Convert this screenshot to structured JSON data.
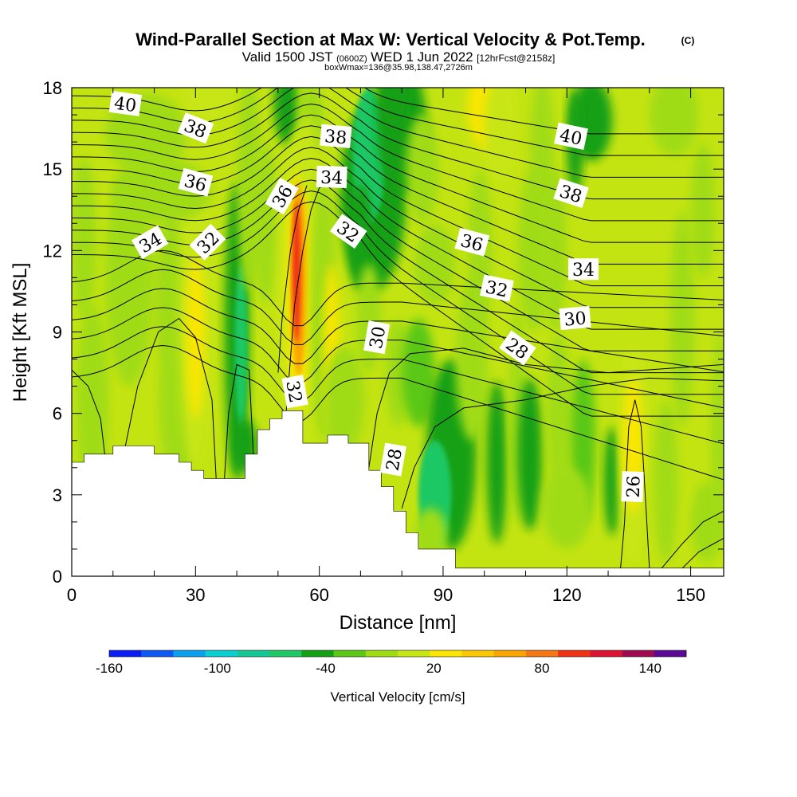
{
  "chart_data": {
    "type": "heatmap",
    "title": "Wind-Parallel Section at Max W: Vertical Velocity & Pot.Temp.",
    "title_mark": "(C)",
    "subtitle_valid": "Valid 1500 JST",
    "subtitle_utc": "(0600Z)",
    "subtitle_date": "WED 1 Jun 2022",
    "subtitle_fcst": "[12hrFcst@2158z]",
    "subtitle2": "boxWmax=136@35.98,138.47,2726m",
    "xlabel": "Distance [nm]",
    "ylabel": "Height [Kft MSL]",
    "xlim": [
      0,
      158
    ],
    "ylim": [
      0,
      18
    ],
    "x_ticks": [
      0,
      30,
      60,
      90,
      120,
      150
    ],
    "y_ticks": [
      0,
      3,
      6,
      9,
      12,
      15,
      18
    ],
    "colorbar": {
      "label": "Vertical Velocity [cm/s]",
      "min": -160,
      "max": 160,
      "step": 20,
      "tick_labels": [
        "-160",
        "-100",
        "-40",
        "20",
        "80",
        "140"
      ],
      "tick_values": [
        -160,
        -100,
        -40,
        20,
        80,
        140
      ],
      "colors": [
        "#0a1ef5",
        "#0f5af5",
        "#0aa0f0",
        "#0acfd0",
        "#14c896",
        "#1ec864",
        "#14a014",
        "#5ac814",
        "#a0dc14",
        "#c8e614",
        "#fae600",
        "#fac800",
        "#faa500",
        "#f57814",
        "#f03214",
        "#dc1432",
        "#a00a50",
        "#5a0a96"
      ]
    },
    "w_max_cells": [
      {
        "x": 55,
        "y": 11,
        "w": 136
      },
      {
        "x": 30,
        "y": 9,
        "w": 40
      },
      {
        "x": 135,
        "y": 5,
        "w": 45
      },
      {
        "x": 103,
        "y": 17.5,
        "w": 45
      },
      {
        "x": 42,
        "y": 8.5,
        "w": -50
      },
      {
        "x": 75,
        "y": 15,
        "w": -55
      },
      {
        "x": 95,
        "y": 4,
        "w": -45
      }
    ],
    "theta_contours_K": [
      26,
      28,
      30,
      32,
      34,
      36,
      38,
      40
    ],
    "theta_contour_labels": [
      {
        "text": "40",
        "x": 13,
        "y": 17.4
      },
      {
        "text": "38",
        "x": 30,
        "y": 16.5
      },
      {
        "text": "36",
        "x": 30,
        "y": 14.5
      },
      {
        "text": "34",
        "x": 19,
        "y": 12.3
      },
      {
        "text": "32",
        "x": 33,
        "y": 12.3
      },
      {
        "text": "36",
        "x": 51,
        "y": 14
      },
      {
        "text": "38",
        "x": 64,
        "y": 16.2
      },
      {
        "text": "34",
        "x": 63,
        "y": 14.7
      },
      {
        "text": "32",
        "x": 67,
        "y": 12.7
      },
      {
        "text": "36",
        "x": 97,
        "y": 12.3
      },
      {
        "text": "40",
        "x": 121,
        "y": 16.2
      },
      {
        "text": "38",
        "x": 121,
        "y": 14.1
      },
      {
        "text": "34",
        "x": 124,
        "y": 11.3
      },
      {
        "text": "32",
        "x": 103,
        "y": 10.6
      },
      {
        "text": "30",
        "x": 122,
        "y": 9.5
      },
      {
        "text": "30",
        "x": 74,
        "y": 8.8
      },
      {
        "text": "28",
        "x": 108,
        "y": 8.4
      },
      {
        "text": "32",
        "x": 54,
        "y": 6.8
      },
      {
        "text": "28",
        "x": 78,
        "y": 4.3
      },
      {
        "text": "26",
        "x": 136,
        "y": 3.3
      }
    ],
    "terrain_profile": {
      "x": [
        0,
        3,
        3,
        10,
        10,
        20,
        20,
        26,
        26,
        29,
        29,
        32,
        32,
        42,
        42,
        45,
        45,
        48,
        48,
        51,
        51,
        56,
        56,
        62,
        62,
        67,
        67,
        72,
        72,
        75,
        75,
        78,
        78,
        81,
        81,
        84,
        84,
        93,
        93,
        96,
        96,
        158
      ],
      "y": [
        4.2,
        4.2,
        4.5,
        4.5,
        4.8,
        4.8,
        4.5,
        4.5,
        4.2,
        4.2,
        3.9,
        3.9,
        3.6,
        3.6,
        4.5,
        4.5,
        5.4,
        5.4,
        5.8,
        5.8,
        6.1,
        6.1,
        4.9,
        4.9,
        5.2,
        5.2,
        4.9,
        4.9,
        3.9,
        3.9,
        3.3,
        3.3,
        2.4,
        2.4,
        1.6,
        1.6,
        1.0,
        1.0,
        0.3,
        0.3,
        0.3,
        0.3
      ]
    }
  }
}
